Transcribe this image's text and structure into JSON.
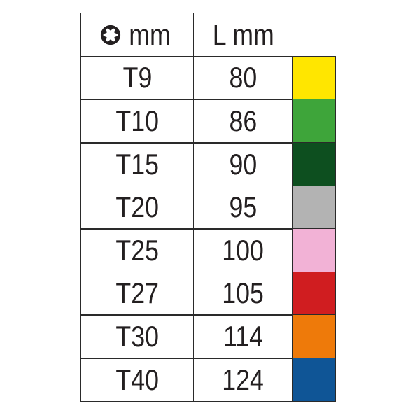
{
  "header": {
    "size_unit": "mm",
    "size_icon": "torx-icon",
    "length_label": "L mm"
  },
  "rows": [
    {
      "size": "T9",
      "length": "80",
      "color": "#ffe600"
    },
    {
      "size": "T10",
      "length": "86",
      "color": "#3ea53a"
    },
    {
      "size": "T15",
      "length": "90",
      "color": "#0d4f1f"
    },
    {
      "size": "T20",
      "length": "95",
      "color": "#b3b3b3"
    },
    {
      "size": "T25",
      "length": "100",
      "color": "#f2b2d6"
    },
    {
      "size": "T27",
      "length": "105",
      "color": "#d01d20"
    },
    {
      "size": "T30",
      "length": "114",
      "color": "#ee7a0a"
    },
    {
      "size": "T40",
      "length": "124",
      "color": "#0f5596"
    }
  ]
}
